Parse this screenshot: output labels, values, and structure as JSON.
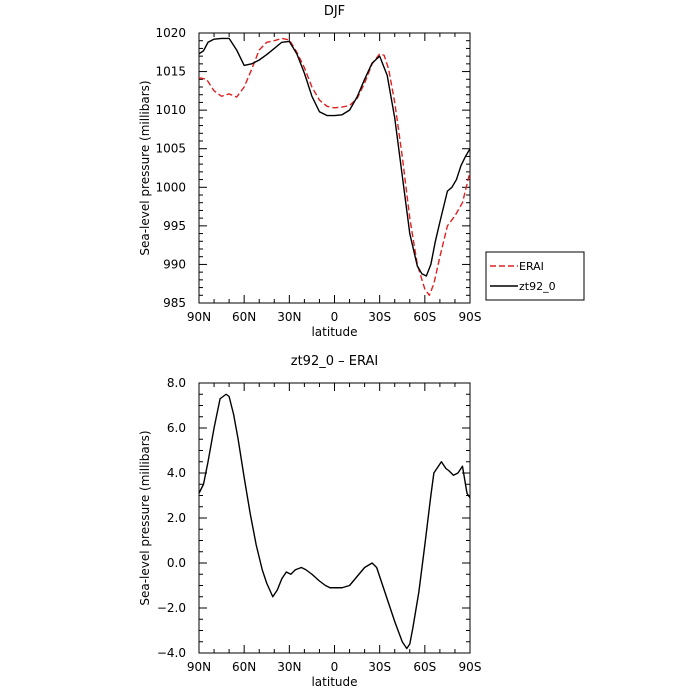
{
  "chart_data": [
    {
      "type": "line",
      "title": "DJF",
      "xlabel": "latitude",
      "ylabel": "Sea-level pressure (millibars)",
      "xlim": [
        -90,
        90
      ],
      "ylim": [
        985,
        1020
      ],
      "xticks": [
        -90,
        -60,
        -30,
        0,
        30,
        60,
        90
      ],
      "xtick_labels": [
        "90N",
        "60N",
        "30N",
        "0",
        "30S",
        "60S",
        "90S"
      ],
      "yticks": [
        985,
        990,
        995,
        1000,
        1005,
        1010,
        1015,
        1020
      ],
      "ytick_labels": [
        "985",
        "990",
        "995",
        "1000",
        "1005",
        "1010",
        "1015",
        "1020"
      ],
      "grid": false,
      "legend": "right",
      "series": [
        {
          "name": "ERAI",
          "color": "#e02020",
          "dash": "dashed",
          "x": [
            -90,
            -85,
            -80,
            -75,
            -70,
            -65,
            -60,
            -55,
            -50,
            -45,
            -40,
            -35,
            -30,
            -25,
            -20,
            -15,
            -10,
            -5,
            0,
            5,
            10,
            15,
            20,
            25,
            30,
            33,
            36,
            40,
            45,
            50,
            55,
            60,
            63,
            66,
            70,
            75,
            80,
            85,
            90
          ],
          "y": [
            1014.2,
            1014.0,
            1012.5,
            1011.8,
            1012.1,
            1011.7,
            1013.0,
            1015.3,
            1017.8,
            1018.8,
            1019.0,
            1019.3,
            1019.1,
            1017.5,
            1015.5,
            1013.0,
            1011.3,
            1010.5,
            1010.3,
            1010.4,
            1010.6,
            1011.5,
            1013.5,
            1016.0,
            1017.3,
            1017.1,
            1015.3,
            1011.0,
            1004.0,
            996.0,
            990.0,
            986.8,
            986.0,
            987.5,
            991.0,
            995.0,
            996.3,
            998.0,
            1002.0
          ]
        },
        {
          "name": "zt92_0",
          "color": "#000000",
          "dash": "solid",
          "x": [
            -90,
            -87,
            -84,
            -80,
            -75,
            -70,
            -65,
            -60,
            -55,
            -50,
            -45,
            -40,
            -35,
            -30,
            -25,
            -20,
            -15,
            -10,
            -5,
            0,
            5,
            10,
            15,
            20,
            25,
            30,
            35,
            40,
            45,
            50,
            55,
            58,
            61,
            64,
            67,
            70,
            75,
            78,
            81,
            84,
            87,
            90
          ],
          "y": [
            1017.3,
            1017.7,
            1018.8,
            1019.2,
            1019.3,
            1019.3,
            1017.8,
            1015.8,
            1016.0,
            1016.5,
            1017.2,
            1018.0,
            1018.8,
            1018.9,
            1017.3,
            1014.8,
            1011.8,
            1009.8,
            1009.3,
            1009.3,
            1009.4,
            1010.0,
            1011.7,
            1014.0,
            1016.1,
            1017.0,
            1014.5,
            1009.0,
            1001.5,
            994.0,
            989.8,
            988.8,
            988.5,
            990.0,
            993.0,
            995.5,
            999.5,
            1000.0,
            1001.0,
            1002.8,
            1004.0,
            1005.0
          ]
        }
      ]
    },
    {
      "type": "line",
      "title": "zt92_0 – ERAI",
      "xlabel": "latitude",
      "ylabel": "Sea-level pressure (millibars)",
      "xlim": [
        -90,
        90
      ],
      "ylim": [
        -4.0,
        8.0
      ],
      "xticks": [
        -90,
        -60,
        -30,
        0,
        30,
        60,
        90
      ],
      "xtick_labels": [
        "90N",
        "60N",
        "30N",
        "0",
        "30S",
        "60S",
        "90S"
      ],
      "yticks": [
        -4,
        -2,
        0,
        2,
        4,
        6,
        8
      ],
      "ytick_labels": [
        "−4.0",
        "−2.0",
        "0.0",
        "2.0",
        "4.0",
        "6.0",
        "8.0"
      ],
      "grid": false,
      "series": [
        {
          "color": "#000000",
          "dash": "solid",
          "x": [
            -90,
            -87,
            -84,
            -80,
            -76,
            -72,
            -70,
            -67,
            -64,
            -60,
            -56,
            -52,
            -48,
            -45,
            -43,
            -41,
            -38,
            -35,
            -32,
            -29,
            -26,
            -22,
            -19,
            -15,
            -10,
            -6,
            -3,
            0,
            5,
            10,
            15,
            20,
            25,
            28,
            31,
            35,
            40,
            45,
            48,
            50,
            52,
            56,
            60,
            64,
            66,
            69,
            71,
            74,
            76,
            79,
            82,
            85,
            88,
            90
          ],
          "y": [
            3.1,
            3.5,
            4.5,
            6.0,
            7.3,
            7.5,
            7.4,
            6.6,
            5.5,
            3.8,
            2.2,
            0.8,
            -0.3,
            -0.9,
            -1.2,
            -1.5,
            -1.2,
            -0.7,
            -0.4,
            -0.5,
            -0.3,
            -0.2,
            -0.3,
            -0.5,
            -0.8,
            -1.0,
            -1.1,
            -1.1,
            -1.1,
            -1.0,
            -0.6,
            -0.2,
            0.0,
            -0.2,
            -0.8,
            -1.6,
            -2.6,
            -3.5,
            -3.8,
            -3.6,
            -2.9,
            -1.3,
            0.8,
            3.0,
            4.0,
            4.3,
            4.5,
            4.2,
            4.1,
            3.9,
            4.0,
            4.3,
            3.1,
            2.9
          ]
        }
      ]
    }
  ]
}
